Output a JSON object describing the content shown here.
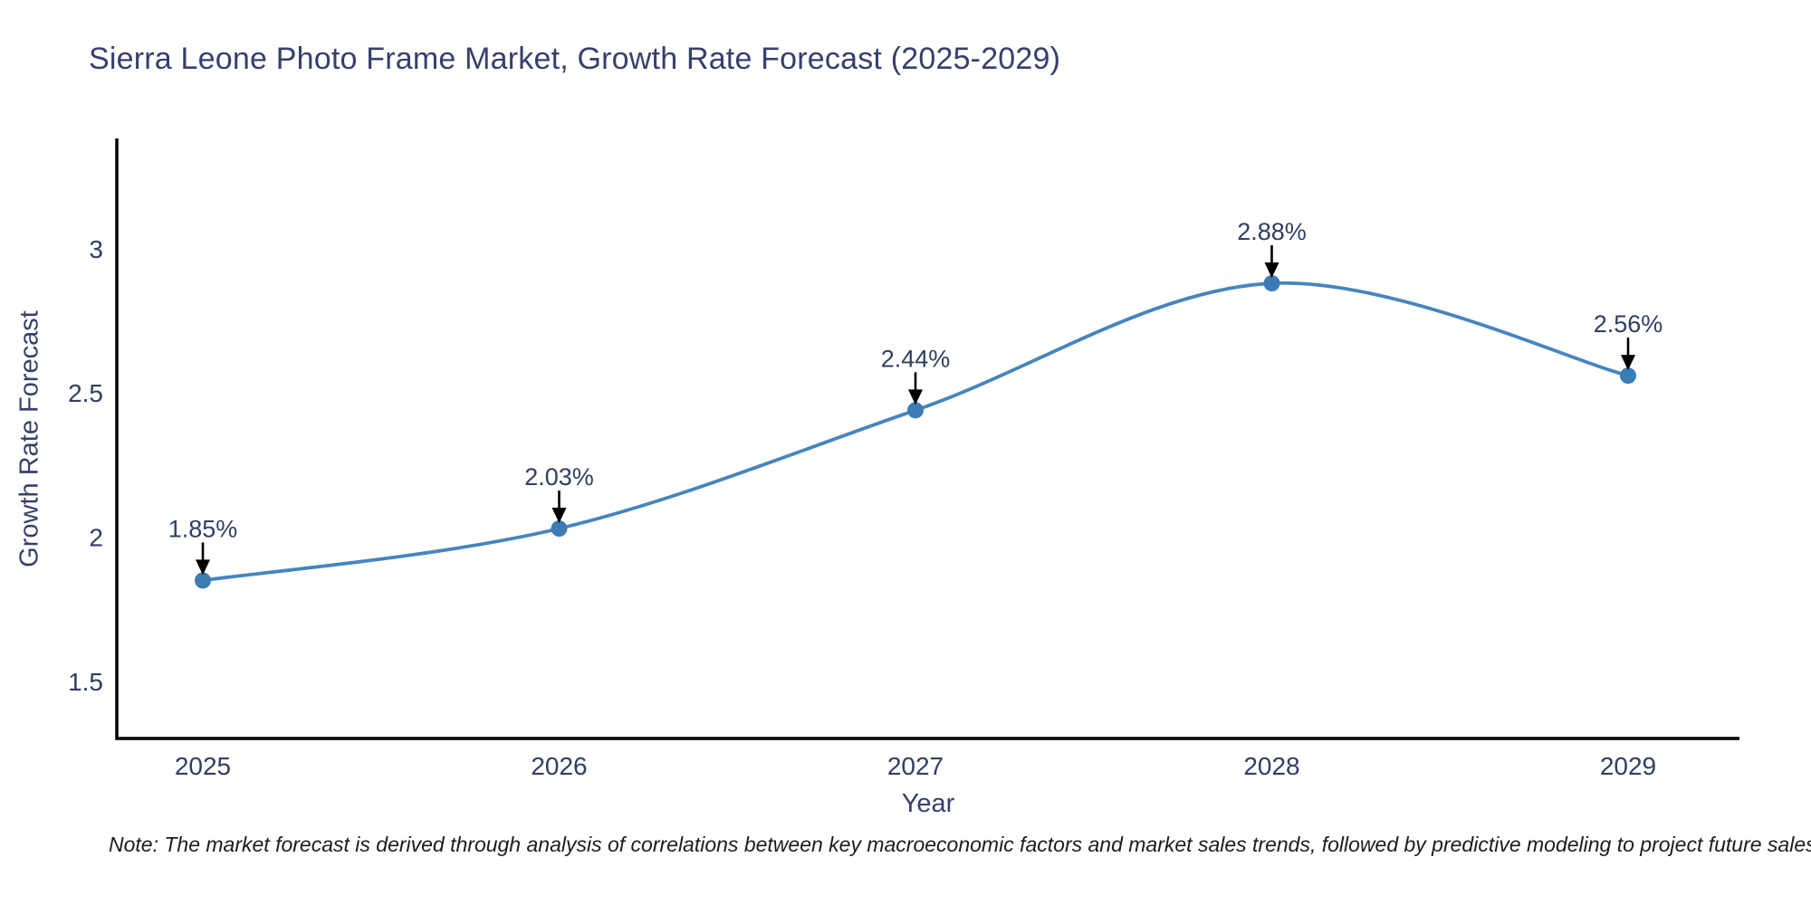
{
  "title": "Sierra Leone Photo Frame Market, Growth Rate Forecast (2025-2029)",
  "note": "Note: The market forecast is derived through analysis of correlations between key macroeconomic factors and market sales trends, followed by predictive modeling to project future sales",
  "chart_data": {
    "type": "line",
    "title": "Sierra Leone Photo Frame Market, Growth Rate Forecast (2025-2029)",
    "xlabel": "Year",
    "ylabel": "Growth Rate Forecast",
    "categories": [
      "2025",
      "2026",
      "2027",
      "2028",
      "2029"
    ],
    "x": [
      2025,
      2026,
      2027,
      2028,
      2029
    ],
    "values": [
      1.85,
      2.03,
      2.44,
      2.88,
      2.56
    ],
    "point_labels": [
      "1.85%",
      "2.03%",
      "2.44%",
      "2.88%",
      "2.56%"
    ],
    "ytick_labels": [
      "1.5",
      "2",
      "2.5",
      "3"
    ],
    "ytick_values": [
      1.5,
      2,
      2.5,
      3
    ],
    "ylim": [
      1.3,
      3.39
    ],
    "line_shape": "spline",
    "grid": false,
    "legend_position": "none",
    "markers": true,
    "annotations_have_arrows": true,
    "colors": {
      "line": "#4685bd",
      "marker": "#3c7cb5",
      "text": "#2f3f5f",
      "title_text": "#36406b",
      "axis": "#000000",
      "arrow": "#000000",
      "note_text": "#1c1c1c",
      "background": "#ffffff"
    }
  }
}
